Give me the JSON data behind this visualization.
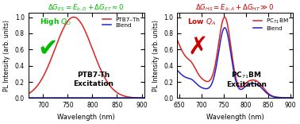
{
  "left_title": "$\\Delta G_{ES} = E_{b,D} + \\Delta G_{ET} \\approx 0$",
  "right_title": "$\\Delta G_{HS} = E_{b,A} + \\Delta G_{HT} \\gg 0$",
  "left_title_color": "#00bb00",
  "right_title_color": "#cc0000",
  "left_xlabel": "Wavelength (nm)",
  "right_xlabel": "Wavelength (nm)",
  "ylabel": "PL Intensity (arb. units)",
  "left_xlim": [
    670,
    905
  ],
  "right_xlim": [
    645,
    905
  ],
  "ylim": [
    0,
    1.05
  ],
  "left_annotation": "PTB7-Th\nExcitation",
  "right_annotation": "PC$_{71}$BM\nExcitation",
  "left_label": "High $Q_D$",
  "right_label": "Low $Q_A$",
  "left_label_color": "#00bb00",
  "right_label_color": "#cc0000",
  "red_color": "#dd2222",
  "blue_color": "#2222cc",
  "left_legend": [
    "PTB7–Th",
    "Blend"
  ],
  "right_legend": [
    "PC$_{71}$BM",
    "Blend"
  ],
  "figsize": [
    3.78,
    1.56
  ],
  "dpi": 100
}
